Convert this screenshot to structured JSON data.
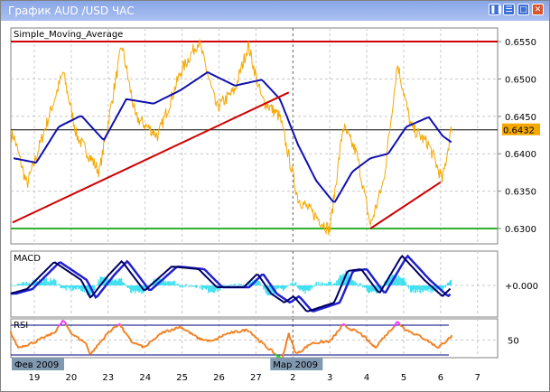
{
  "window": {
    "title": "График AUD /USD  ЧАС",
    "buttons": [
      "restore",
      "minimize",
      "maximize",
      "close"
    ]
  },
  "colors": {
    "price": "#f5a800",
    "sma": "#1010b0",
    "trend": "#d00000",
    "support": "#30b030",
    "resistance": "#d00000",
    "macd_main": "#000060",
    "macd_signal": "#2020d0",
    "macd_hist": "#40e0f0",
    "rsi": "#f08020",
    "rsi_overbought": "#ff30ff",
    "rsi_oversold": "#20e020",
    "current_price_bg": "#f5a800"
  },
  "chart_data": [
    {
      "type": "line",
      "title": "Simple_Moving_Average",
      "x_tick_labels": [
        "19",
        "20",
        "23",
        "24",
        "25",
        "26",
        "27",
        "2",
        "3",
        "4",
        "5",
        "6",
        "7"
      ],
      "month_labels": [
        {
          "label": "Фев 2009",
          "at": "19"
        },
        {
          "label": "Мар 2009",
          "at": "2"
        }
      ],
      "y_tick_labels": [
        "0.6550",
        "0.6500",
        "0.6450",
        "0.6400",
        "0.6350",
        "0.6300"
      ],
      "ylim": [
        0.627,
        0.6565
      ],
      "current_price": "0.6432",
      "hlines": {
        "resistance": 0.655,
        "support": 0.63,
        "current": 0.6432
      },
      "trendlines": [
        [
          [
            -0.59,
            0.6308
          ],
          [
            6.89,
            0.6482
          ]
        ],
        [
          [
            9.1,
            0.63
          ],
          [
            11.0,
            0.6362
          ]
        ]
      ],
      "series": [
        {
          "key": "price",
          "points": [
            [
              -0.56,
              0.6424
            ],
            [
              -0.2,
              0.6358
            ],
            [
              0.78,
              0.6509
            ],
            [
              1.15,
              0.6424
            ],
            [
              1.76,
              0.6376
            ],
            [
              2.37,
              0.6545
            ],
            [
              2.74,
              0.6449
            ],
            [
              3.35,
              0.6424
            ],
            [
              3.96,
              0.6509
            ],
            [
              4.45,
              0.6551
            ],
            [
              4.94,
              0.6461
            ],
            [
              5.43,
              0.6485
            ],
            [
              5.79,
              0.6545
            ],
            [
              6.16,
              0.6473
            ],
            [
              6.65,
              0.6449
            ],
            [
              7.14,
              0.634
            ],
            [
              7.63,
              0.6316
            ],
            [
              8.0,
              0.6298
            ],
            [
              8.36,
              0.6436
            ],
            [
              8.73,
              0.64
            ],
            [
              9.1,
              0.6304
            ],
            [
              9.46,
              0.6364
            ],
            [
              9.83,
              0.6521
            ],
            [
              10.2,
              0.6436
            ],
            [
              10.68,
              0.6412
            ],
            [
              11.05,
              0.6364
            ],
            [
              11.3,
              0.6436
            ]
          ]
        },
        {
          "key": "sma",
          "points": [
            [
              -0.56,
              0.6394
            ],
            [
              0.05,
              0.6388
            ],
            [
              0.66,
              0.6436
            ],
            [
              1.27,
              0.6451
            ],
            [
              1.88,
              0.6418
            ],
            [
              2.49,
              0.6473
            ],
            [
              3.23,
              0.6467
            ],
            [
              3.96,
              0.6485
            ],
            [
              4.69,
              0.6509
            ],
            [
              5.43,
              0.6491
            ],
            [
              6.16,
              0.6499
            ],
            [
              6.65,
              0.6473
            ],
            [
              7.14,
              0.6412
            ],
            [
              7.63,
              0.6364
            ],
            [
              8.12,
              0.6334
            ],
            [
              8.61,
              0.6376
            ],
            [
              9.1,
              0.6394
            ],
            [
              9.58,
              0.64
            ],
            [
              10.07,
              0.6436
            ],
            [
              10.68,
              0.6449
            ],
            [
              11.05,
              0.6424
            ],
            [
              11.3,
              0.6415
            ]
          ]
        }
      ]
    },
    {
      "type": "line",
      "title": "MACD",
      "y_tick_labels": [
        "+0.000"
      ],
      "ylim": [
        -0.0035,
        0.0038
      ],
      "series": [
        {
          "key": "macd",
          "points": [
            [
              -0.64,
              -0.0009
            ],
            [
              -0.2,
              -0.0004
            ],
            [
              0.54,
              0.0026
            ],
            [
              1.27,
              0.0006
            ],
            [
              1.52,
              -0.0014
            ],
            [
              2.0,
              0.0011
            ],
            [
              2.37,
              0.0027
            ],
            [
              2.98,
              -0.0006
            ],
            [
              3.72,
              0.0021
            ],
            [
              4.45,
              0.0018
            ],
            [
              4.94,
              -0.0002
            ],
            [
              5.67,
              -0.0002
            ],
            [
              6.04,
              0.0013
            ],
            [
              6.41,
              -0.0009
            ],
            [
              6.77,
              -0.0019
            ],
            [
              7.02,
              -0.0012
            ],
            [
              7.38,
              -0.0029
            ],
            [
              8.12,
              -0.0019
            ],
            [
              8.48,
              0.0016
            ],
            [
              8.85,
              0.0018
            ],
            [
              9.34,
              -0.0009
            ],
            [
              9.95,
              0.0033
            ],
            [
              10.56,
              0.0006
            ],
            [
              11.05,
              -0.0012
            ],
            [
              11.3,
              -0.0002
            ]
          ]
        }
      ]
    },
    {
      "type": "line",
      "title": "RSI",
      "y_tick_labels": [
        "50"
      ],
      "levels": [
        70,
        30
      ],
      "ylim": [
        20,
        85
      ],
      "series": [
        {
          "key": "rsi",
          "points": [
            [
              -0.64,
              60
            ],
            [
              -0.44,
              40
            ],
            [
              0.05,
              48
            ],
            [
              0.54,
              60
            ],
            [
              0.78,
              76
            ],
            [
              1.03,
              58
            ],
            [
              1.39,
              46
            ],
            [
              1.52,
              31
            ],
            [
              2.0,
              60
            ],
            [
              2.3,
              72
            ],
            [
              2.62,
              48
            ],
            [
              2.98,
              40
            ],
            [
              3.47,
              60
            ],
            [
              3.96,
              68
            ],
            [
              4.45,
              52
            ],
            [
              4.82,
              48
            ],
            [
              5.18,
              58
            ],
            [
              5.79,
              64
            ],
            [
              6.16,
              46
            ],
            [
              6.53,
              31
            ],
            [
              6.7,
              24
            ],
            [
              6.89,
              58
            ],
            [
              7.09,
              31
            ],
            [
              7.51,
              46
            ],
            [
              8.0,
              48
            ],
            [
              8.36,
              70
            ],
            [
              8.85,
              58
            ],
            [
              9.22,
              40
            ],
            [
              9.83,
              74
            ],
            [
              10.07,
              64
            ],
            [
              10.56,
              52
            ],
            [
              10.93,
              40
            ],
            [
              11.3,
              55
            ]
          ]
        }
      ]
    }
  ]
}
